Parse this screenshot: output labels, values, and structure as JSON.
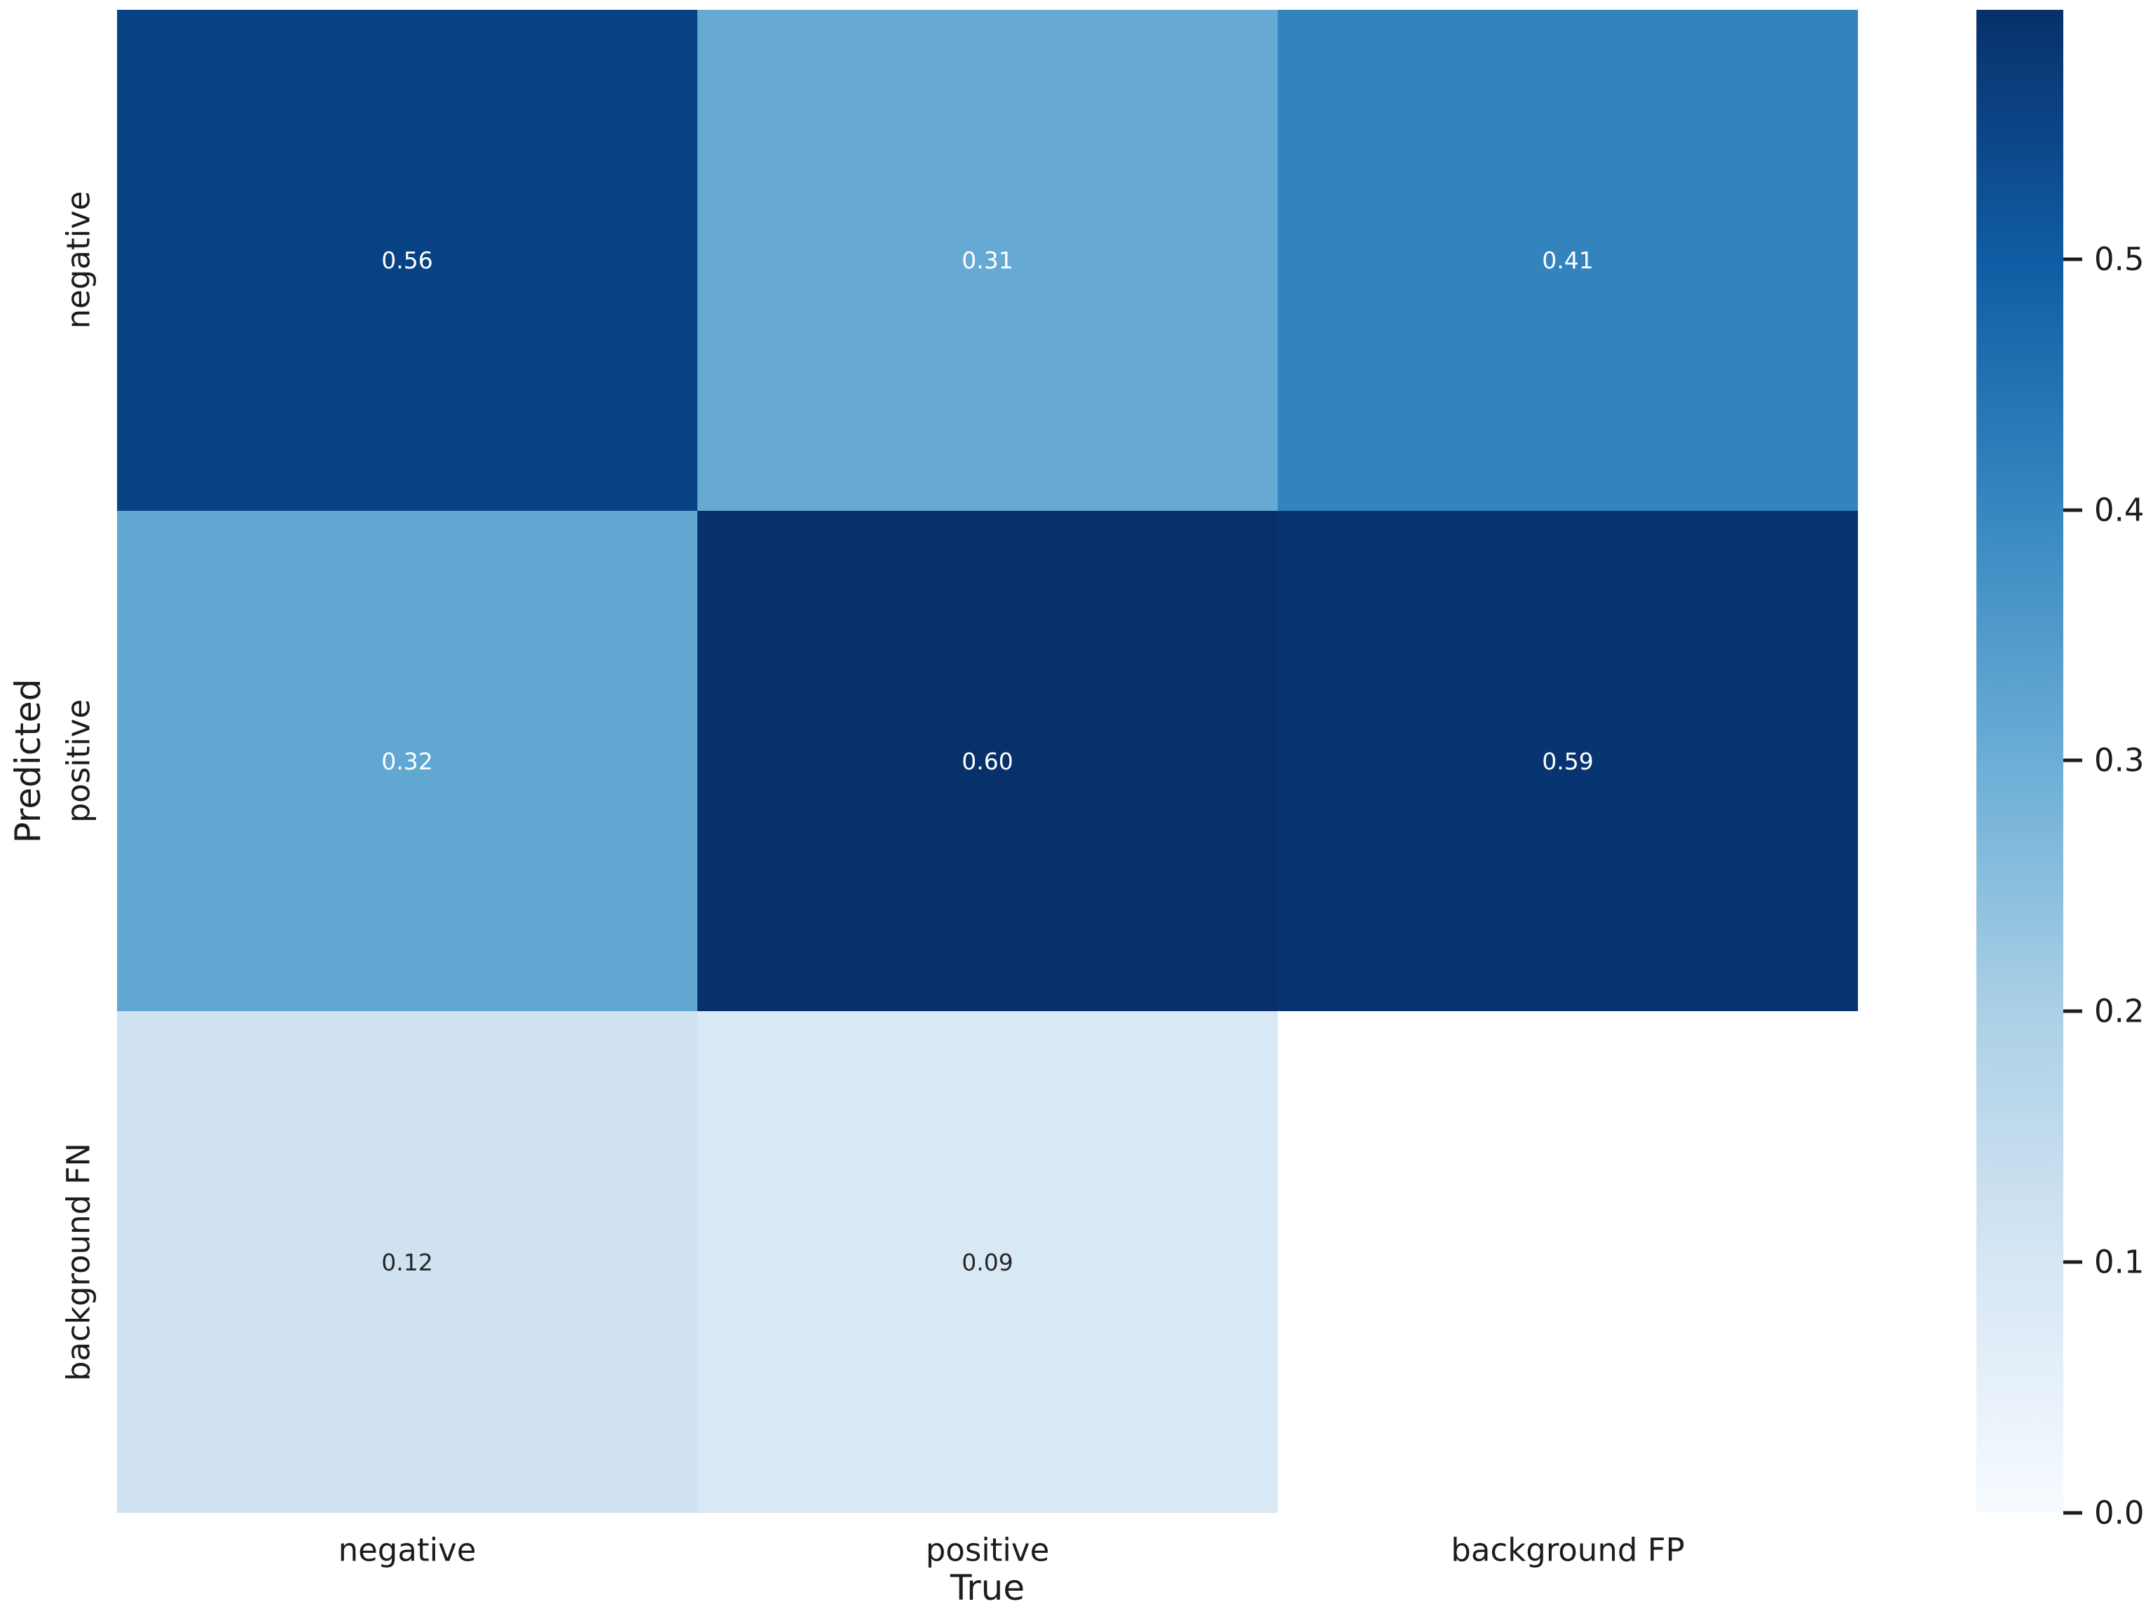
{
  "figure": {
    "background": "#ffffff",
    "text_color": "#1c1c1c"
  },
  "chart_data": {
    "type": "heatmap",
    "title": "",
    "xlabel": "True",
    "ylabel": "Predicted",
    "x_categories": [
      "negative",
      "positive",
      "background FP"
    ],
    "y_categories": [
      "negative",
      "positive",
      "background FN"
    ],
    "values": [
      [
        0.56,
        0.31,
        0.41
      ],
      [
        0.32,
        0.6,
        0.59
      ],
      [
        0.12,
        0.09,
        null
      ]
    ],
    "colormap": "Blues",
    "vmin": 0.0,
    "vmax": 0.6,
    "grid": false,
    "legend_position": "right-colorbar",
    "cells": [
      {
        "row": 0,
        "col": 0,
        "label": "0.56",
        "bg": "#084285",
        "fg": "#ffffff"
      },
      {
        "row": 0,
        "col": 1,
        "label": "0.31",
        "bg": "#66aad4",
        "fg": "#ffffff"
      },
      {
        "row": 0,
        "col": 2,
        "label": "0.41",
        "bg": "#3383bd",
        "fg": "#ffffff"
      },
      {
        "row": 1,
        "col": 0,
        "label": "0.32",
        "bg": "#60a7d2",
        "fg": "#ffffff"
      },
      {
        "row": 1,
        "col": 1,
        "label": "0.60",
        "bg": "#08306b",
        "fg": "#ffffff"
      },
      {
        "row": 1,
        "col": 2,
        "label": "0.59",
        "bg": "#083472",
        "fg": "#ffffff"
      },
      {
        "row": 2,
        "col": 0,
        "label": "0.12",
        "bg": "#d0e1f2",
        "fg": "#262626"
      },
      {
        "row": 2,
        "col": 1,
        "label": "0.09",
        "bg": "#d9e8f5",
        "fg": "#262626"
      },
      {
        "row": 2,
        "col": 2,
        "label": "",
        "bg": "#ffffff",
        "fg": "#262626"
      }
    ],
    "colorbar": {
      "ticks": [
        "0.5",
        "0.4",
        "0.3",
        "0.2",
        "0.1",
        "0.0"
      ],
      "gradient_bottom_to_top": [
        "#f7fbff",
        "#d6e6f4",
        "#abd0e6",
        "#6baed6",
        "#3787c0",
        "#105ca4",
        "#08306b"
      ]
    }
  }
}
